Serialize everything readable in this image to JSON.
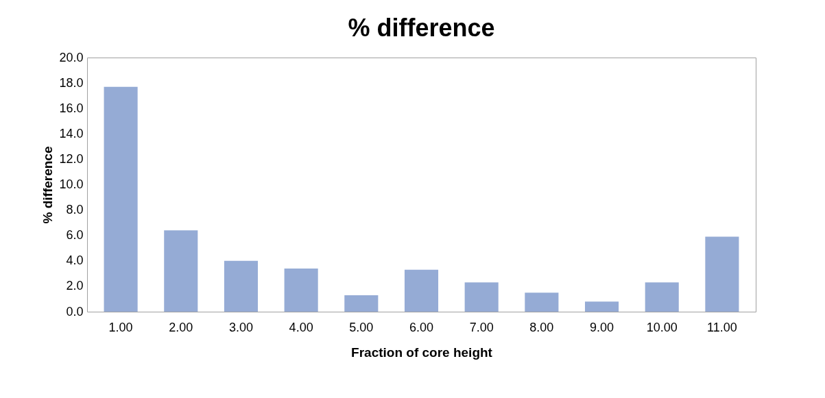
{
  "chart_data": {
    "type": "bar",
    "title": "% difference",
    "xlabel": "Fraction of core height",
    "ylabel": "% difference",
    "categories": [
      "1.00",
      "2.00",
      "3.00",
      "4.00",
      "5.00",
      "6.00",
      "7.00",
      "8.00",
      "9.00",
      "10.00",
      "11.00"
    ],
    "values": [
      17.7,
      6.4,
      4.0,
      3.4,
      1.3,
      3.3,
      2.3,
      1.5,
      0.8,
      2.3,
      5.9
    ],
    "color": "#95abd5",
    "ylim": [
      0,
      20
    ],
    "yticks": [
      {
        "value": 0,
        "label": "0.0"
      },
      {
        "value": 2,
        "label": "2.0"
      },
      {
        "value": 4,
        "label": "4.0"
      },
      {
        "value": 6,
        "label": "6.0"
      },
      {
        "value": 8,
        "label": "8.0"
      },
      {
        "value": 10,
        "label": "10.0"
      },
      {
        "value": 12,
        "label": "12.0"
      },
      {
        "value": 14,
        "label": "14.0"
      },
      {
        "value": 16,
        "label": "16.0"
      },
      {
        "value": 18,
        "label": "18.0"
      },
      {
        "value": 20,
        "label": "20.0"
      }
    ],
    "grid": false
  }
}
